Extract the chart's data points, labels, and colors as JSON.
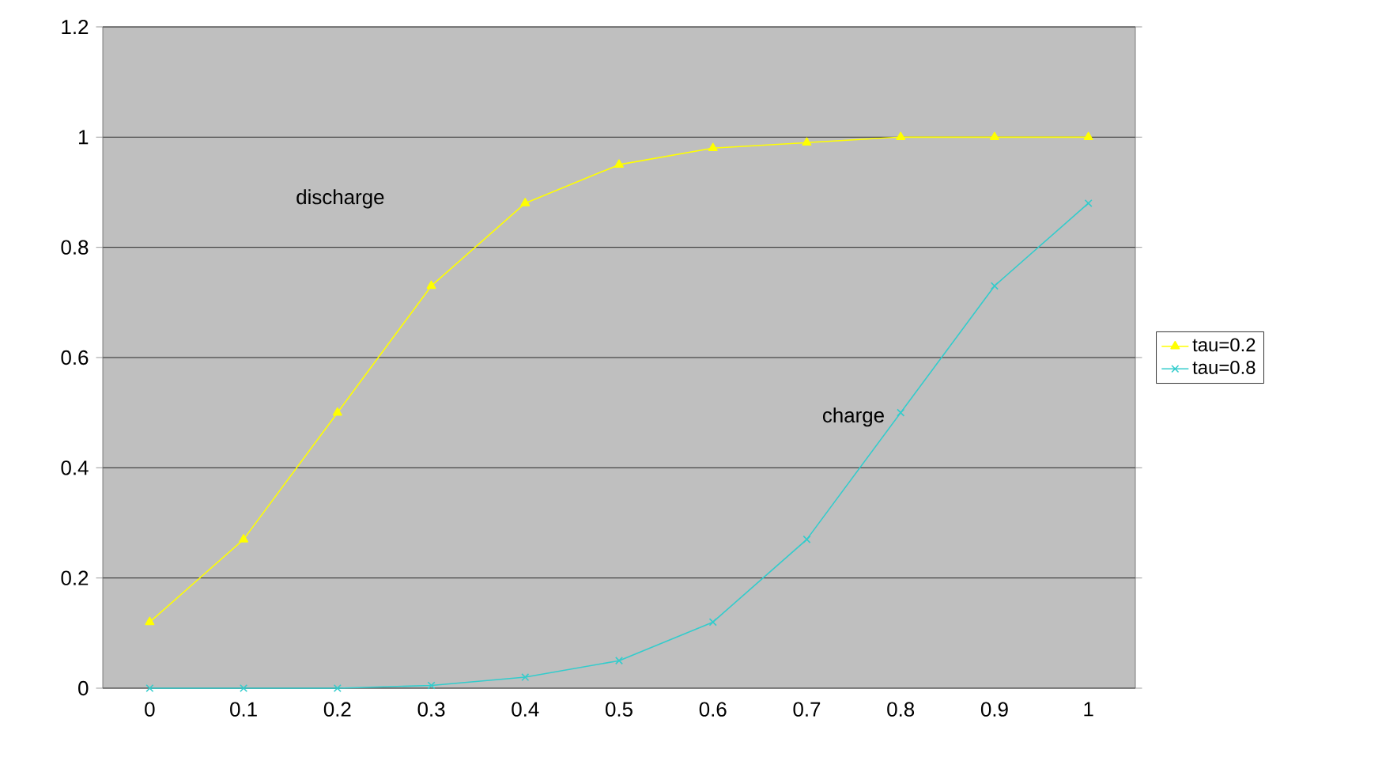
{
  "chart_data": {
    "type": "line",
    "categories": [
      "0",
      "0.1",
      "0.2",
      "0.3",
      "0.4",
      "0.5",
      "0.6",
      "0.7",
      "0.8",
      "0.9",
      "1"
    ],
    "series": [
      {
        "name": "tau=0.2",
        "color": "#ffff00",
        "marker": "triangle",
        "values": [
          0.12,
          0.27,
          0.5,
          0.73,
          0.88,
          0.95,
          0.98,
          0.99,
          1.0,
          1.0,
          1.0
        ]
      },
      {
        "name": "tau=0.8",
        "color": "#33cccc",
        "marker": "cross",
        "values": [
          0,
          0,
          0,
          0.005,
          0.02,
          0.05,
          0.12,
          0.27,
          0.5,
          0.73,
          0.88
        ]
      }
    ],
    "ylim": [
      0,
      1.2
    ],
    "yticks": [
      0,
      0.2,
      0.4,
      0.6,
      0.8,
      1,
      1.2
    ],
    "grid": "y",
    "legend": "right",
    "line_style": "solid",
    "annotations": [
      "discharge",
      "charge"
    ]
  }
}
